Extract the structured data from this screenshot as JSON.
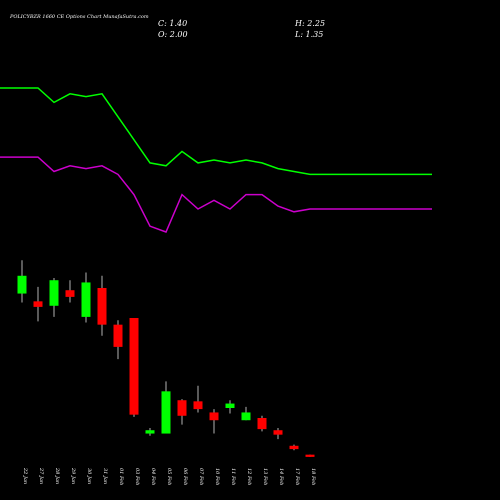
{
  "chart_data": {
    "type": "candlestick",
    "title": "POLICYBZR 1660 CE Options Chart MunafaSutra.com",
    "ohlc_summary": {
      "open": "O: 2.00",
      "high": "H: 2.25",
      "close": "C: 1.40",
      "low": "L: 1.35"
    },
    "x": [
      "22 Jan",
      "27 Jan",
      "28 Jan",
      "29 Jan",
      "30 Jan",
      "31 Jan",
      "01 Feb",
      "03 Feb",
      "04 Feb",
      "05 Feb",
      "06 Feb",
      "07 Feb",
      "10 Feb",
      "11 Feb",
      "12 Feb",
      "13 Feb",
      "14 Feb",
      "17 Feb",
      "18 Feb"
    ],
    "candles": [
      {
        "open": 68,
        "close": 84,
        "high": 98,
        "low": 60,
        "direction": "up"
      },
      {
        "open": 61,
        "close": 56,
        "high": 74,
        "low": 43,
        "direction": "down"
      },
      {
        "open": 57,
        "close": 80,
        "high": 82,
        "low": 47,
        "direction": "up"
      },
      {
        "open": 71,
        "close": 65,
        "high": 80,
        "low": 60,
        "direction": "down"
      },
      {
        "open": 47,
        "close": 78,
        "high": 87,
        "low": 42,
        "direction": "up"
      },
      {
        "open": 73,
        "close": 40,
        "high": 84,
        "low": 30,
        "direction": "down"
      },
      {
        "open": 40,
        "close": 20,
        "high": 44,
        "low": 9,
        "direction": "down"
      },
      {
        "open": 46,
        "close": -41,
        "high": 46,
        "low": -43,
        "direction": "down"
      },
      {
        "open": -58,
        "close": -55,
        "high": -53,
        "low": -60,
        "direction": "up"
      },
      {
        "open": -58,
        "close": -20,
        "high": -11,
        "low": -58,
        "direction": "up"
      },
      {
        "open": -42,
        "close": -28,
        "high": -27,
        "low": -50,
        "direction": "down"
      },
      {
        "open": -29,
        "close": -36,
        "high": -15,
        "low": -39,
        "direction": "down"
      },
      {
        "open": -39,
        "close": -46,
        "high": -36,
        "low": -58,
        "direction": "down"
      },
      {
        "open": -31,
        "close": -35,
        "high": -28,
        "low": -40,
        "direction": "up"
      },
      {
        "open": -39,
        "close": -46,
        "high": -34,
        "low": -46,
        "direction": "up"
      },
      {
        "open": -44,
        "close": -54,
        "high": -42,
        "low": -56,
        "direction": "down"
      },
      {
        "open": -55,
        "close": -59,
        "high": -53,
        "low": -63,
        "direction": "down"
      },
      {
        "open": -69,
        "close": -72,
        "high": -68,
        "low": -73,
        "direction": "down"
      },
      {
        "open": -77,
        "close": -79,
        "high": -77,
        "low": -79,
        "direction": "down"
      }
    ],
    "series": [
      {
        "color": "#00ff00",
        "values": [
          100,
          100,
          95,
          98,
          97,
          98,
          90,
          82,
          74,
          73,
          78,
          74,
          75,
          74,
          75,
          74,
          72,
          71,
          70
        ]
      },
      {
        "color": "#cc00cc",
        "values": [
          76,
          76,
          71,
          73,
          72,
          73,
          70,
          63,
          52,
          50,
          63,
          58,
          61,
          58,
          63,
          63,
          59,
          57,
          58
        ]
      }
    ],
    "ylim": [
      0,
      100
    ],
    "grid": false,
    "colors": {
      "background": "#000000",
      "up": "#00ff00",
      "down": "#ff0000",
      "wick": "#ffffff"
    }
  }
}
